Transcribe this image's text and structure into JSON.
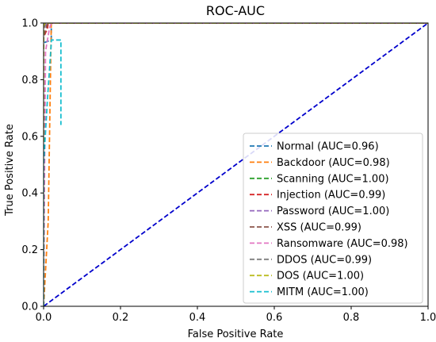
{
  "chart_data": {
    "type": "line",
    "title": "ROC-AUC",
    "xlabel": "False Positive Rate",
    "ylabel": "True Positive Rate",
    "xlim": [
      0.0,
      1.0
    ],
    "ylim": [
      0.0,
      1.0
    ],
    "xticks": [
      "0.0",
      "0.2",
      "0.4",
      "0.6",
      "0.8",
      "1.0"
    ],
    "yticks": [
      "0.0",
      "0.2",
      "0.4",
      "0.6",
      "0.8",
      "1.0"
    ],
    "grid": false,
    "legend_position": "lower-right",
    "series": [
      {
        "name": "Normal  (AUC=0.96)",
        "color": "#1f77b4",
        "x": [
          0.0,
          0.0,
          0.02,
          0.02,
          1.0
        ],
        "y": [
          0.0,
          0.93,
          0.94,
          1.0,
          1.0
        ]
      },
      {
        "name": "Backdoor  (AUC=0.98)",
        "color": "#ff7f0e",
        "x": [
          0.0,
          0.012,
          0.02,
          0.095,
          1.0
        ],
        "y": [
          0.0,
          0.3,
          1.0,
          1.0,
          1.0
        ]
      },
      {
        "name": "Scanning  (AUC=1.00)",
        "color": "#2ca02c",
        "x": [
          0.0,
          0.0,
          0.01,
          1.0
        ],
        "y": [
          0.0,
          0.99,
          1.0,
          1.0
        ]
      },
      {
        "name": "Injection  (AUC=0.99)",
        "color": "#d62728",
        "x": [
          0.0,
          0.0,
          0.01,
          0.012,
          1.0
        ],
        "y": [
          0.0,
          0.95,
          0.98,
          1.0,
          1.0
        ]
      },
      {
        "name": "Password  (AUC=1.00)",
        "color": "#9467bd",
        "x": [
          0.0,
          0.0,
          0.008,
          1.0
        ],
        "y": [
          0.0,
          0.98,
          1.0,
          1.0
        ]
      },
      {
        "name": "XSS  (AUC=0.99)",
        "color": "#8c564b",
        "x": [
          0.0,
          0.0,
          0.008,
          0.012,
          1.0
        ],
        "y": [
          0.0,
          0.95,
          0.99,
          1.0,
          1.0
        ]
      },
      {
        "name": "Ransomware  (AUC=0.98)",
        "color": "#e377c2",
        "x": [
          0.0,
          0.005,
          0.015,
          0.02,
          1.0
        ],
        "y": [
          0.0,
          0.9,
          0.98,
          1.0,
          1.0
        ]
      },
      {
        "name": "DDOS  (AUC=0.99)",
        "color": "#7f7f7f",
        "x": [
          0.0,
          0.0,
          0.005,
          1.0
        ],
        "y": [
          0.0,
          0.98,
          1.0,
          1.0
        ]
      },
      {
        "name": "DOS  (AUC=1.00)",
        "color": "#bcbd22",
        "x": [
          0.0,
          0.0,
          0.005,
          1.0
        ],
        "y": [
          0.0,
          0.99,
          1.0,
          1.0
        ]
      },
      {
        "name": "MITM  (AUC=1.00)",
        "color": "#17becf",
        "x": [
          0.0,
          0.0,
          0.01,
          0.02,
          0.02,
          0.045,
          0.045
        ],
        "y": [
          0.0,
          0.5,
          0.73,
          0.93,
          0.94,
          0.94,
          0.64
        ]
      }
    ],
    "reference_line": {
      "x": [
        0.0,
        1.0
      ],
      "y": [
        0.0,
        1.0
      ],
      "color": "#0000cc"
    }
  }
}
